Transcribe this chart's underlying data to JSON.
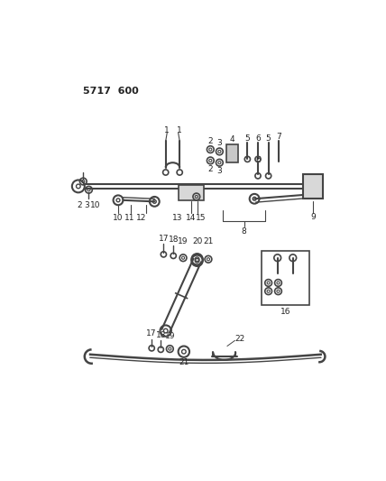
{
  "title": "5717  600",
  "bg_color": "#ffffff",
  "line_color": "#444444",
  "text_color": "#222222",
  "fig_width": 4.28,
  "fig_height": 5.33,
  "dpi": 100
}
